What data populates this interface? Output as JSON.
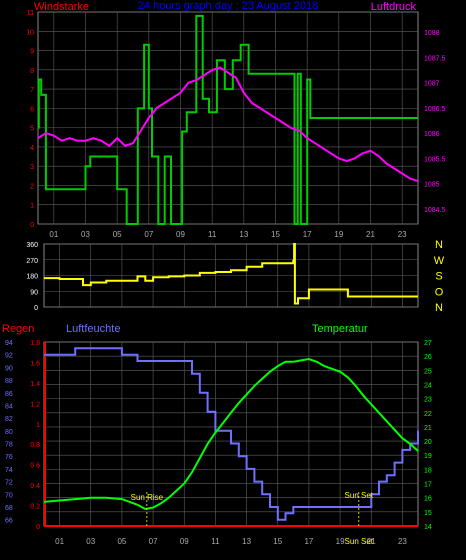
{
  "colors": {
    "wind": "#ff0000",
    "pressure": "#ff00ff",
    "title": "#0000ff",
    "wind_speed": "#00cc00",
    "direction": "#ffff00",
    "rain": "#ff0000",
    "humidity": "#7070ff",
    "temperature": "#00ff00",
    "grid": "#606060",
    "tick_label": "#aaaaaa",
    "annotation": "#ffff00"
  },
  "panels": {
    "wind": {
      "title": "24 hours graph day : 23 August 2018",
      "left_label": "Windstarke",
      "right_label": "Luftdruck"
    },
    "direction": {
      "compass": [
        "N",
        "W",
        "S",
        "O",
        "N"
      ]
    },
    "climate": {
      "rain_label": "Regen",
      "humidity_label": "Luftfeuchte",
      "temperature_label": "Temperatur",
      "sunrise_label": "Sun Rise",
      "sunset_label": "Sun Set",
      "footer_label": "Sun Set"
    }
  },
  "chart_data": [
    {
      "type": "line",
      "title": "24 hours graph day : 23 August 2018",
      "x_ticks": [
        "01",
        "03",
        "05",
        "07",
        "09",
        "11",
        "13",
        "15",
        "17",
        "19",
        "21",
        "23"
      ],
      "xlim": [
        0,
        24
      ],
      "left_axis": {
        "label": "Windstarke",
        "ylim": [
          0,
          11
        ],
        "ticks": [
          0,
          1,
          2,
          3,
          4,
          5,
          6,
          7,
          8,
          9,
          10,
          11
        ]
      },
      "right_axis": {
        "label": "Luftdruck",
        "ylim": [
          1084.2,
          1088.4
        ],
        "ticks": [
          1084.5,
          1085,
          1085.5,
          1086,
          1086.5,
          1087,
          1087.5,
          1088
        ]
      },
      "series": [
        {
          "name": "Windstarke",
          "axis": "left",
          "step": true,
          "x": [
            0.0,
            0.05,
            0.2,
            0.5,
            2.0,
            2.2,
            3.0,
            3.3,
            3.6,
            4.5,
            5.0,
            5.3,
            5.6,
            6.0,
            6.3,
            6.7,
            7.0,
            7.2,
            7.6,
            8.0,
            8.4,
            8.7,
            9.1,
            9.4,
            10.0,
            10.4,
            10.8,
            11.3,
            11.8,
            12.3,
            12.8,
            13.3,
            14.0,
            15.0,
            16.0,
            16.2,
            16.4,
            16.6,
            17.0,
            17.2,
            24.0
          ],
          "values": [
            5,
            7.5,
            6.7,
            1.8,
            1.8,
            1.8,
            3.0,
            3.5,
            3.5,
            3.5,
            1.8,
            1.8,
            0,
            0,
            6.0,
            9.3,
            6.0,
            3.5,
            0,
            3.5,
            0,
            0,
            4.8,
            5.8,
            10.8,
            6.5,
            5.8,
            8.5,
            7.0,
            8.5,
            9.3,
            7.8,
            7.8,
            7.8,
            7.8,
            0,
            7.8,
            0,
            7.5,
            5.5,
            5.5
          ]
        },
        {
          "name": "Luftdruck",
          "axis": "right",
          "x": [
            0,
            0.5,
            1,
            1.5,
            2,
            2.5,
            3,
            3.5,
            4,
            4.5,
            5,
            5.5,
            6,
            6.5,
            7,
            7.5,
            8,
            8.5,
            9,
            9.5,
            10,
            10.5,
            11,
            11.5,
            12,
            12.5,
            13,
            13.5,
            14,
            14.5,
            15,
            15.5,
            16,
            16.5,
            17,
            17.5,
            18,
            18.5,
            19,
            19.5,
            20,
            20.5,
            21,
            21.5,
            22,
            22.5,
            23,
            23.5,
            24
          ],
          "values": [
            1085.9,
            1086.0,
            1085.95,
            1085.85,
            1085.9,
            1085.85,
            1085.85,
            1085.9,
            1085.85,
            1085.75,
            1085.9,
            1085.75,
            1085.8,
            1086.05,
            1086.3,
            1086.5,
            1086.6,
            1086.7,
            1086.8,
            1087.0,
            1087.05,
            1087.15,
            1087.25,
            1087.3,
            1087.2,
            1087.1,
            1086.8,
            1086.6,
            1086.5,
            1086.4,
            1086.3,
            1086.2,
            1086.1,
            1086.05,
            1085.9,
            1085.8,
            1085.7,
            1085.6,
            1085.5,
            1085.45,
            1085.5,
            1085.6,
            1085.65,
            1085.55,
            1085.4,
            1085.3,
            1085.2,
            1085.1,
            1085.05
          ]
        }
      ]
    },
    {
      "type": "line",
      "x_ticks": [],
      "xlim": [
        0,
        24
      ],
      "ylim": [
        0,
        360
      ],
      "y_ticks": [
        0,
        90,
        180,
        270,
        360
      ],
      "series": [
        {
          "name": "",
          "step": true,
          "x": [
            0.0,
            1.0,
            2.5,
            3.0,
            4.0,
            5.5,
            6.0,
            6.5,
            7.0,
            8.0,
            9.0,
            10.0,
            11.0,
            12.0,
            13.0,
            14.0,
            16.0,
            16.05,
            16.1,
            16.3,
            17.0,
            19.0,
            19.5,
            24.0
          ],
          "values": [
            165,
            160,
            125,
            140,
            150,
            150,
            175,
            150,
            170,
            175,
            180,
            195,
            200,
            210,
            230,
            250,
            265,
            360,
            20,
            50,
            100,
            100,
            60,
            60
          ]
        }
      ]
    },
    {
      "type": "line",
      "x_ticks": [
        "01",
        "03",
        "05",
        "07",
        "09",
        "11",
        "13",
        "15",
        "17",
        "19",
        "21",
        "23"
      ],
      "xlim": [
        0,
        24
      ],
      "rain_axis": {
        "label": "Regen",
        "ylim": [
          0,
          1.8
        ],
        "ticks": [
          0,
          0.2,
          0.4,
          0.6,
          0.8,
          1,
          1.2,
          1.4,
          1.6,
          1.8
        ]
      },
      "humidity_axis": {
        "label": "Luftfeuchte",
        "ylim": [
          65,
          94
        ],
        "ticks": [
          66,
          68,
          70,
          72,
          74,
          76,
          78,
          80,
          82,
          84,
          86,
          88,
          90,
          92,
          94
        ]
      },
      "temperature_axis": {
        "label": "Temperatur",
        "ylim": [
          14,
          27
        ],
        "ticks": [
          14,
          15,
          16,
          17,
          18,
          19,
          20,
          21,
          22,
          23,
          24,
          25,
          26,
          27
        ]
      },
      "series": [
        {
          "name": "Regen",
          "axis": "rain",
          "x": [
            0,
            24
          ],
          "values": [
            0,
            0
          ]
        },
        {
          "name": "Luftfeuchte",
          "axis": "humidity",
          "step": true,
          "x": [
            0,
            2,
            5,
            6,
            7,
            8,
            9,
            9.5,
            10,
            10.5,
            11,
            11.5,
            12,
            12.5,
            13,
            13.5,
            14,
            14.5,
            15,
            15.5,
            16,
            16.5,
            17,
            17.5,
            18,
            18.5,
            19,
            20,
            21,
            21.5,
            22,
            22.5,
            23,
            23.5,
            24
          ],
          "values": [
            92,
            93,
            92,
            91,
            91,
            91,
            91,
            89,
            86,
            83,
            80,
            80,
            78,
            76,
            74,
            72,
            70,
            68,
            66,
            67,
            68,
            68,
            68,
            68,
            68,
            68,
            68,
            68,
            70,
            72,
            73,
            75,
            77,
            78,
            80
          ]
        },
        {
          "name": "Temperatur",
          "axis": "temperature",
          "x": [
            0,
            1,
            2,
            3,
            4,
            5,
            6,
            6.5,
            7,
            7.5,
            8,
            8.5,
            9,
            9.5,
            10,
            10.5,
            11,
            11.5,
            12,
            12.5,
            13,
            13.5,
            14,
            14.5,
            15,
            15.5,
            16,
            16.5,
            17,
            17.5,
            18,
            18.5,
            19,
            19.5,
            20,
            20.5,
            21,
            21.5,
            22,
            22.5,
            23,
            23.5,
            24
          ],
          "values": [
            15.7,
            15.8,
            15.9,
            16.0,
            16.0,
            15.9,
            15.5,
            15.2,
            15.3,
            15.6,
            16.0,
            16.5,
            17.0,
            17.8,
            18.8,
            19.8,
            20.6,
            21.3,
            22.0,
            22.7,
            23.3,
            23.9,
            24.4,
            24.9,
            25.3,
            25.6,
            25.6,
            25.7,
            25.8,
            25.6,
            25.3,
            25.1,
            24.9,
            24.5,
            23.9,
            23.2,
            22.6,
            22.0,
            21.4,
            20.8,
            20.2,
            19.8,
            19.3
          ]
        }
      ],
      "annotations": [
        {
          "label": "Sun Rise",
          "x": 6.6
        },
        {
          "label": "Sun Set",
          "x": 20.2
        }
      ]
    }
  ]
}
